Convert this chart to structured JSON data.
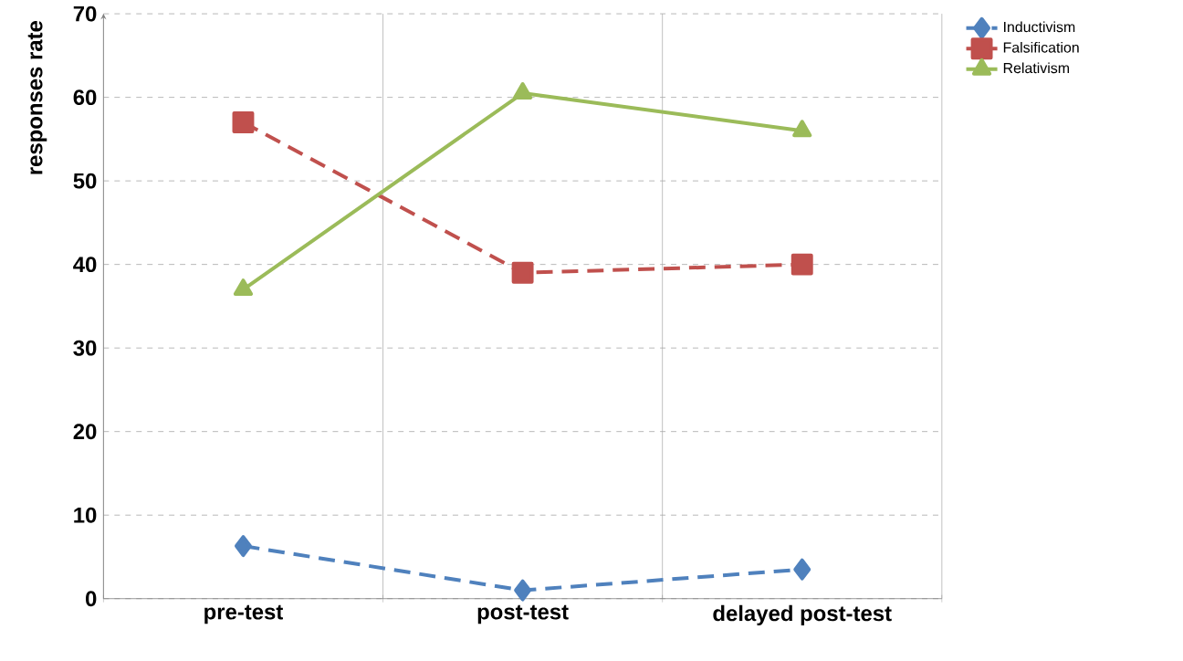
{
  "chart_data": {
    "type": "line",
    "ylabel": "responses rate",
    "categories": [
      "pre-test",
      "post-test",
      "delayed post-test"
    ],
    "series": [
      {
        "name": "Inductivism",
        "color": "#4f81bd",
        "values": [
          6.3,
          1,
          3.5
        ],
        "marker": "diamond",
        "line_style": "dashed"
      },
      {
        "name": "Falsification",
        "color": "#c0504d",
        "values": [
          57,
          39,
          40
        ],
        "marker": "square",
        "line_style": "dashed"
      },
      {
        "name": "Relativism",
        "color": "#9bbb59",
        "values": [
          37,
          60.5,
          56
        ],
        "marker": "triangle",
        "line_style": "solid"
      }
    ],
    "ylim": [
      0,
      70
    ],
    "yticks": [
      0,
      10,
      20,
      30,
      40,
      50,
      60,
      70
    ],
    "grid": true,
    "legend": "top right"
  }
}
